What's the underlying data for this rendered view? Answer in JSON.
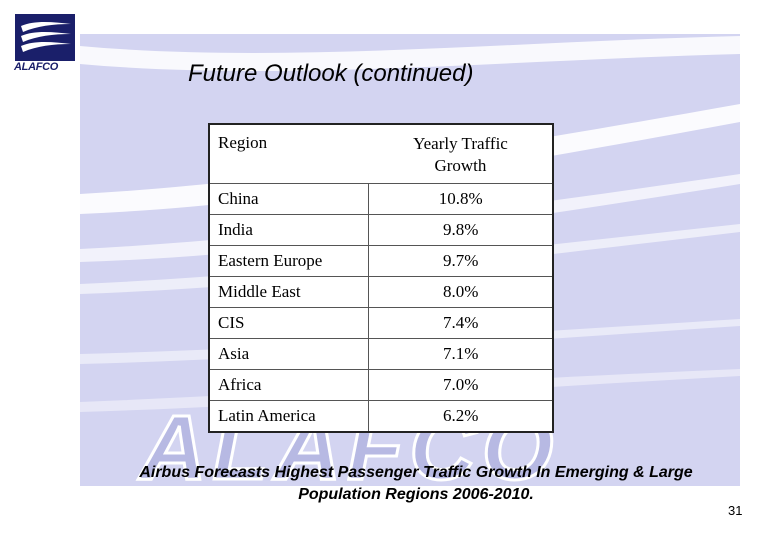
{
  "slide": {
    "title": "Future Outlook (continued)",
    "logo_text": "ALAFCO",
    "watermark_text": "ALAFCO",
    "caption": "Airbus Forecasts Highest Passenger Traffic Growth In Emerging & Large Population Regions 2006-2010.",
    "page_number": "31",
    "colors": {
      "background_panel": "#d3d4f1",
      "swoosh": "#ffffff",
      "logo_navy": "#1a1f6a",
      "watermark": "#b7b9e3"
    }
  },
  "table": {
    "headers": {
      "region": "Region",
      "growth": "Yearly Traffic Growth"
    },
    "rows": [
      {
        "region": "China",
        "growth": "10.8%"
      },
      {
        "region": "India",
        "growth": "9.8%"
      },
      {
        "region": "Eastern Europe",
        "growth": "9.7%"
      },
      {
        "region": "Middle East",
        "growth": "8.0%"
      },
      {
        "region": "CIS",
        "growth": "7.4%"
      },
      {
        "region": "Asia",
        "growth": "7.1%"
      },
      {
        "region": "Africa",
        "growth": "7.0%"
      },
      {
        "region": "Latin America",
        "growth": "6.2%"
      }
    ]
  }
}
